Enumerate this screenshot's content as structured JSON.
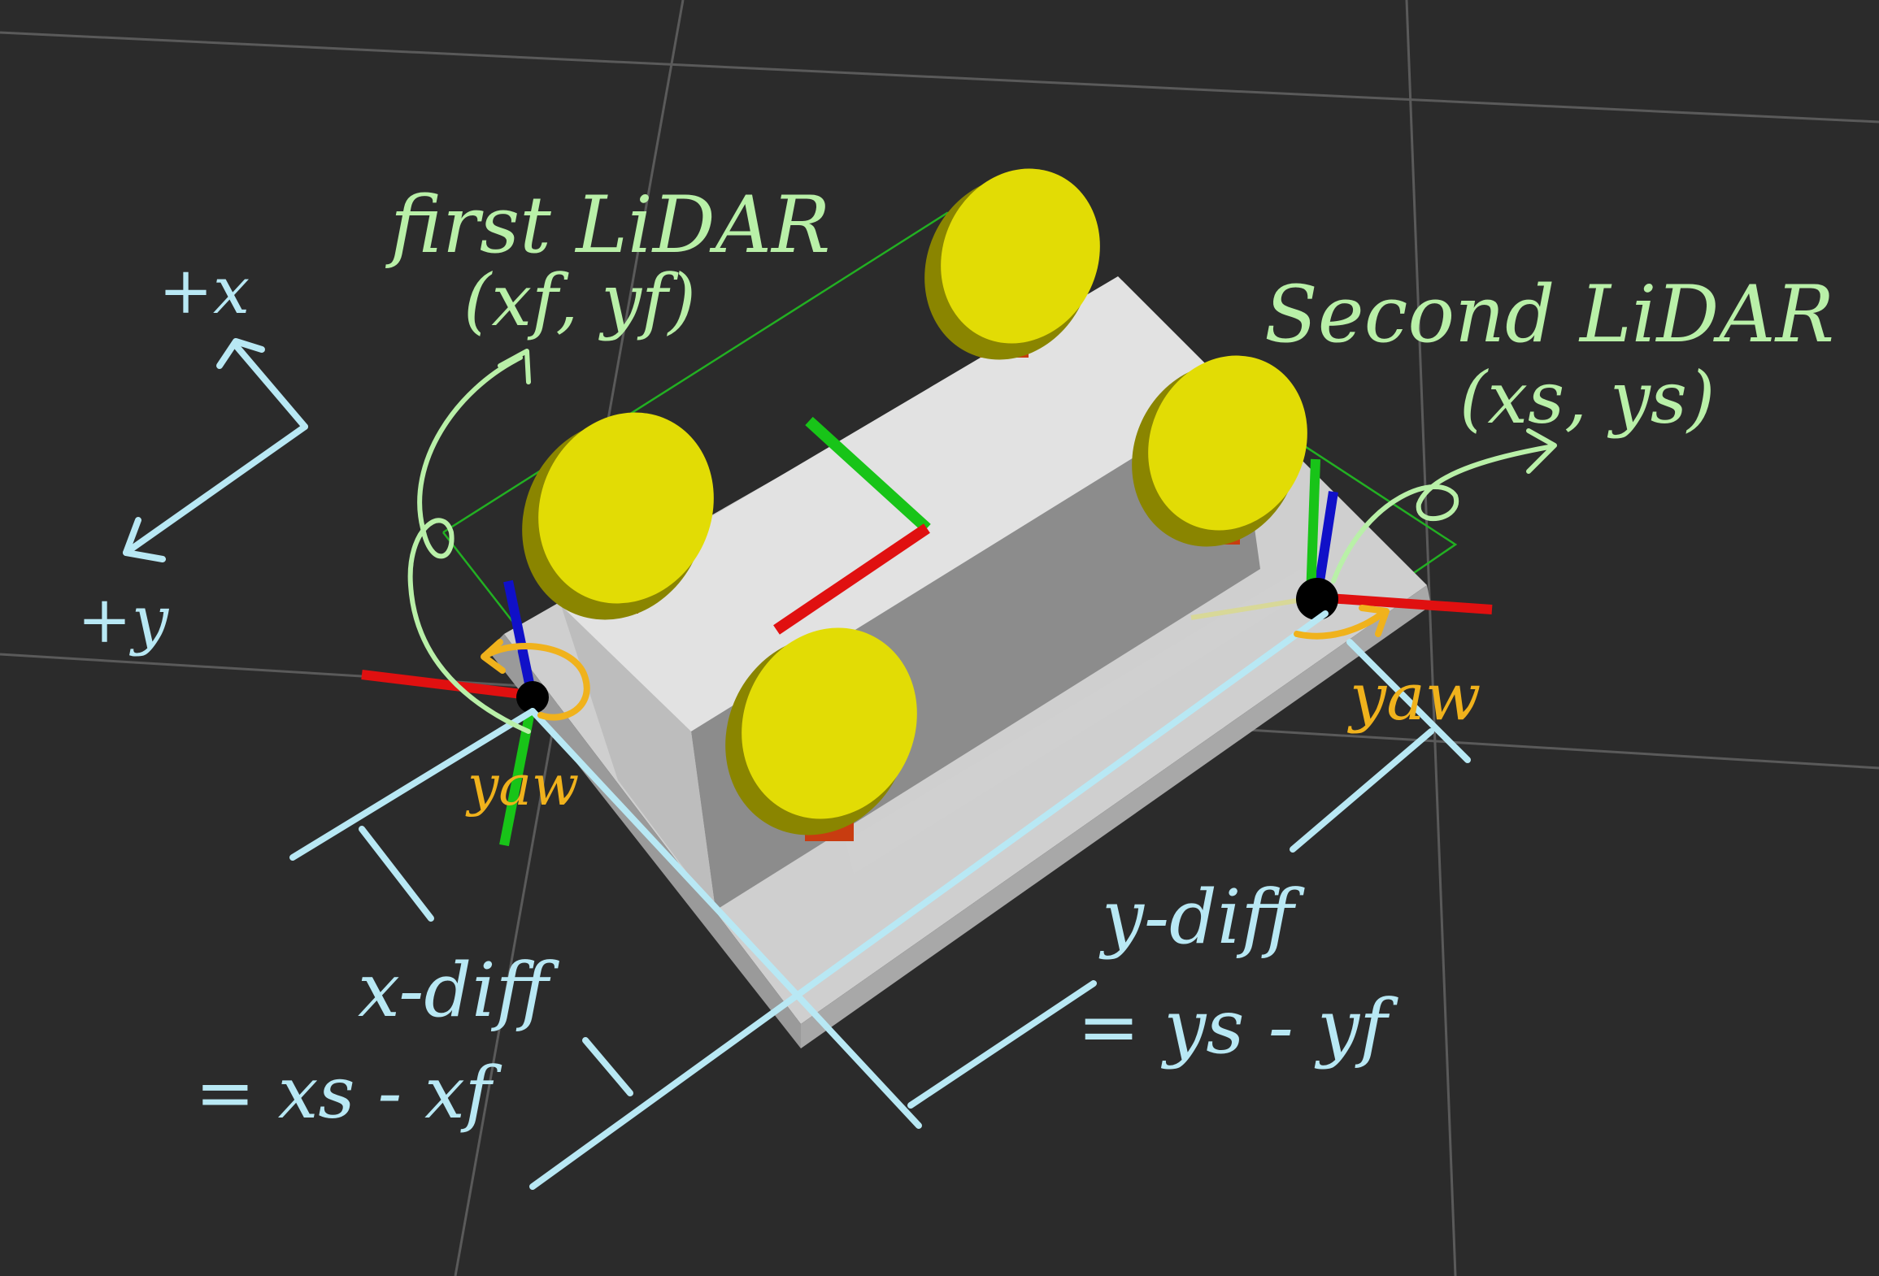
{
  "labels": {
    "first_lidar_title": "first LiDAR",
    "first_lidar_coords": "(xf, yf)",
    "second_lidar_title": "Second LiDAR",
    "second_lidar_coords": "(xs, ys)",
    "axis_plus_x": "+x",
    "axis_plus_y": "+y",
    "yaw_first": "yaw",
    "yaw_second": "yaw",
    "x_diff_name": "x-diff",
    "x_diff_formula": "= xs - xf",
    "y_diff_name": "y-diff",
    "y_diff_formula": "= ys - yf"
  },
  "colors": {
    "background": "#2b2b2b",
    "grid": "#5a5a5a",
    "annotation_green": "#b9f0a8",
    "annotation_cyan": "#b8e8f4",
    "annotation_yellow": "#f0b21c",
    "wheel_yellow": "#e2dc05",
    "wheel_dark": "#8a8500",
    "body_light": "#d6d6d6",
    "body_shadow": "#8e8e8e",
    "axis_red": "#e01010",
    "axis_green": "#18c418",
    "axis_blue": "#1010c8",
    "bbox_green": "#22b022"
  }
}
